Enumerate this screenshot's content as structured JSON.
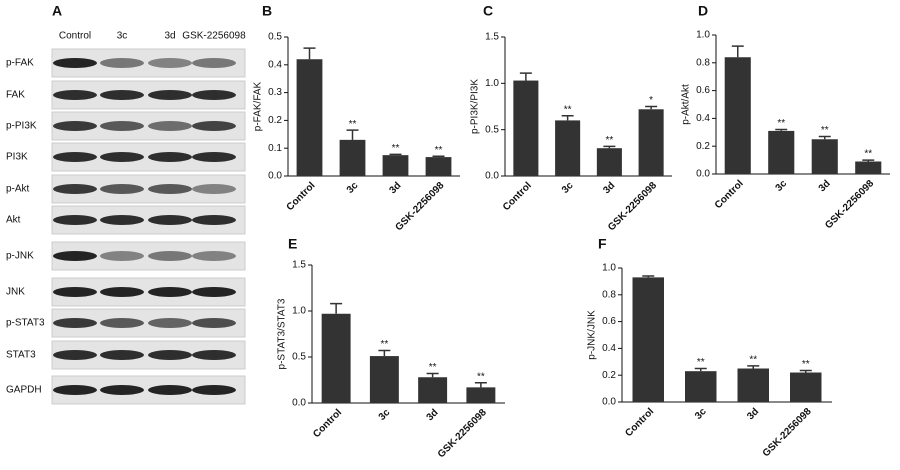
{
  "blot": {
    "panel_label": "A",
    "columns": [
      "Control",
      "3c",
      "3d",
      "GSK-2256098"
    ],
    "rows": [
      "p-FAK",
      "FAK",
      "p-PI3K",
      "PI3K",
      "p-Akt",
      "Akt",
      "p-JNK",
      "JNK",
      "p-STAT3",
      "STAT3",
      "GAPDH"
    ]
  },
  "chart_data": [
    {
      "type": "bar",
      "panel_label": "B",
      "ylabel": "p-FAK/FAK",
      "color": "#333333",
      "categories": [
        "Control",
        "3c",
        "3d",
        "GSK-2256098"
      ],
      "values": [
        0.42,
        0.13,
        0.075,
        0.068
      ],
      "errors": [
        0.04,
        0.035,
        0.003,
        0.003
      ],
      "significance": [
        null,
        "**",
        "**",
        "**"
      ],
      "ylim": [
        0,
        0.5
      ],
      "yticks": [
        {
          "value": 0,
          "label": "0.0"
        },
        0.1,
        0.2,
        0.3,
        0.4,
        0.5
      ]
    },
    {
      "type": "bar",
      "panel_label": "C",
      "ylabel": "p-PI3K/PI3K",
      "color": "#333333",
      "categories": [
        "Control",
        "3c",
        "3d",
        "GSK-2256098"
      ],
      "values": [
        1.03,
        0.6,
        0.3,
        0.72
      ],
      "errors": [
        0.08,
        0.05,
        0.02,
        0.03
      ],
      "significance": [
        null,
        "**",
        "**",
        "*"
      ],
      "ylim": [
        0,
        1.5
      ],
      "yticks": [
        {
          "value": 0,
          "label": "0.0"
        },
        0.5,
        {
          "value": 1,
          "label": "1.0"
        },
        1.5
      ]
    },
    {
      "type": "bar",
      "panel_label": "D",
      "ylabel": "p-Akt/Akt",
      "color": "#333333",
      "categories": [
        "Control",
        "3c",
        "3d",
        "GSK-2256098"
      ],
      "values": [
        0.84,
        0.31,
        0.25,
        0.09
      ],
      "errors": [
        0.08,
        0.01,
        0.02,
        0.01
      ],
      "significance": [
        null,
        "**",
        "**",
        "**"
      ],
      "ylim": [
        0,
        1
      ],
      "yticks": [
        {
          "value": 0,
          "label": "0.0"
        },
        0.2,
        0.4,
        0.6,
        0.8,
        {
          "value": 1,
          "label": "1.0"
        }
      ]
    },
    {
      "type": "bar",
      "panel_label": "E",
      "ylabel": "p-STAT3/STAT3",
      "color": "#333333",
      "categories": [
        "Control",
        "3c",
        "3d",
        "GSK-2256098"
      ],
      "values": [
        0.97,
        0.51,
        0.28,
        0.17
      ],
      "errors": [
        0.11,
        0.06,
        0.04,
        0.05
      ],
      "significance": [
        null,
        "**",
        "**",
        "**"
      ],
      "ylim": [
        0,
        1.5
      ],
      "yticks": [
        {
          "value": 0,
          "label": "0.0"
        },
        0.5,
        {
          "value": 1,
          "label": "1.0"
        },
        1.5
      ]
    },
    {
      "type": "bar",
      "panel_label": "F",
      "ylabel": "p-JNK/JNK",
      "color": "#333333",
      "categories": [
        "Control",
        "3c",
        "3d",
        "GSK-2256098"
      ],
      "values": [
        0.93,
        0.23,
        0.25,
        0.22
      ],
      "errors": [
        0.01,
        0.02,
        0.02,
        0.015
      ],
      "significance": [
        null,
        "**",
        "**",
        "**"
      ],
      "ylim": [
        0,
        1
      ],
      "yticks": [
        {
          "value": 0,
          "label": "0.0"
        },
        0.2,
        0.4,
        0.6,
        0.8,
        {
          "value": 1,
          "label": "1.0"
        }
      ]
    }
  ]
}
